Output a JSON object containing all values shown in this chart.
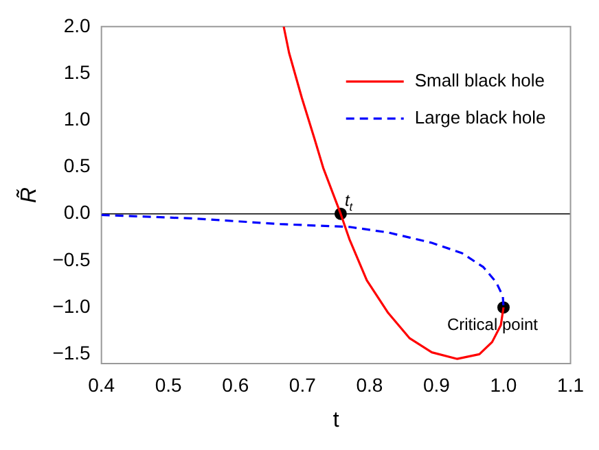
{
  "chart_data": {
    "type": "line",
    "xlabel": "t",
    "ylabel": "R̃",
    "xlim": [
      0.4,
      1.1
    ],
    "ylim": [
      -1.6,
      2.0
    ],
    "xticks": [
      0.4,
      0.5,
      0.6,
      0.7,
      0.8,
      0.9,
      {
        "value": 1.0,
        "label": "1.0"
      },
      1.1
    ],
    "yticks": [
      {
        "value": 2.0,
        "label": "2.0"
      },
      1.5,
      {
        "value": 1.0,
        "label": "1.0"
      },
      0.5,
      {
        "value": 0.0,
        "label": "0.0"
      },
      {
        "value": -0.5,
        "label": "−0.5"
      },
      {
        "value": -1.0,
        "label": "−1.0"
      },
      {
        "value": -1.5,
        "label": "−1.5"
      }
    ],
    "grid": false,
    "legend": "top right",
    "marker": "none",
    "series": [
      {
        "name": "Small black hole",
        "color": "#ff0000",
        "line_style": "solid",
        "x": [
          0.672,
          0.68,
          0.699,
          0.718,
          0.731,
          0.757,
          0.77,
          0.796,
          0.828,
          0.86,
          0.893,
          0.931,
          0.964,
          0.983,
          0.996,
          1.0
        ],
        "values": [
          2.0,
          1.72,
          1.24,
          0.8,
          0.49,
          0.0,
          -0.27,
          -0.71,
          -1.06,
          -1.33,
          -1.48,
          -1.55,
          -1.5,
          -1.37,
          -1.19,
          -1.0
        ]
      },
      {
        "name": "Large black hole",
        "color": "#0000ff",
        "line_style": "dashed",
        "x": [
          0.4,
          0.538,
          0.667,
          0.77,
          0.828,
          0.893,
          0.938,
          0.97,
          0.989,
          0.999,
          1.0
        ],
        "values": [
          -0.013,
          -0.05,
          -0.11,
          -0.14,
          -0.2,
          -0.31,
          -0.42,
          -0.57,
          -0.73,
          -0.88,
          -1.0
        ]
      },
      {
        "type": "scatter",
        "color": "#000000",
        "marker": "circle",
        "x": [
          0.757,
          1.0
        ],
        "values": [
          0.0,
          -1.0
        ]
      }
    ],
    "ref_lines": [
      {
        "axis": "y",
        "value": 0,
        "color": "#000000"
      }
    ],
    "annotations": [
      {
        "text": "t$_{t}$",
        "x": 0.757,
        "y": 0.0
      },
      {
        "text": "Critical point",
        "x": 1.0,
        "y": -1.0
      }
    ]
  }
}
